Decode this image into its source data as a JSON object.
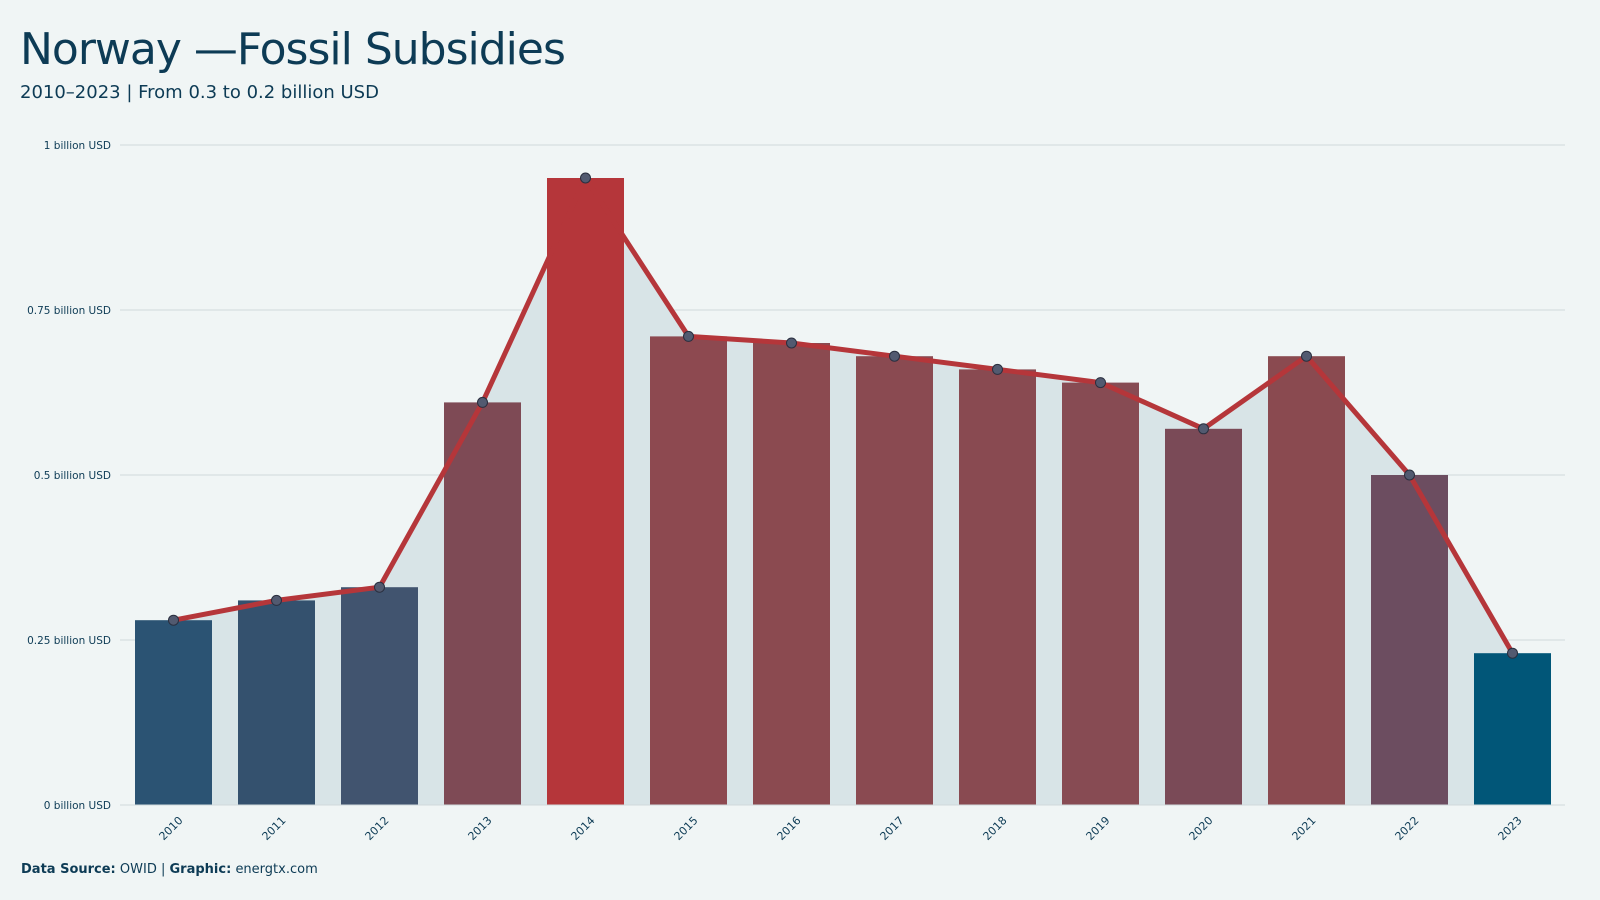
{
  "title": "Norway —Fossil Subsidies",
  "subtitle": "2010–2023 | From 0.3 to 0.2 billion USD",
  "footer": {
    "source_label": "Data Source:",
    "source_value": "OWID",
    "separator": "|",
    "graphic_label": "Graphic:",
    "graphic_value": "energtx.com"
  },
  "chart_data": {
    "type": "bar",
    "categories": [
      "2010",
      "2011",
      "2012",
      "2013",
      "2014",
      "2015",
      "2016",
      "2017",
      "2018",
      "2019",
      "2020",
      "2021",
      "2022",
      "2023"
    ],
    "values": [
      0.28,
      0.31,
      0.33,
      0.61,
      0.95,
      0.71,
      0.7,
      0.68,
      0.66,
      0.64,
      0.57,
      0.68,
      0.5,
      0.23
    ],
    "bar_colors": [
      "#2b5373",
      "#34516e",
      "#41546f",
      "#7e4a55",
      "#b5363a",
      "#8d4950",
      "#8b4a50",
      "#8a4a51",
      "#894a51",
      "#874b53",
      "#7a4a57",
      "#8a4a50",
      "#6c4d60",
      "#015678"
    ],
    "overlay": {
      "type": "line-area",
      "line_color": "#b5363a",
      "area_color": "#d8e4e7",
      "marker_color": "#525a70"
    },
    "ylim": [
      0,
      1
    ],
    "yticks": [
      0,
      0.25,
      0.5,
      0.75,
      1
    ],
    "ytick_labels": [
      "0 billion USD",
      "0.25 billion USD",
      "0.5 billion USD",
      "0.75 billion USD",
      "1 billion USD"
    ],
    "grid": true,
    "xlabel": "",
    "ylabel": ""
  }
}
